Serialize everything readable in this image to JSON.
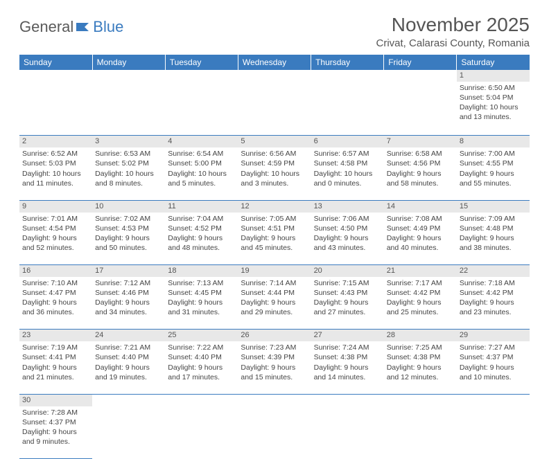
{
  "logo": {
    "part1": "General",
    "part2": "Blue"
  },
  "title": "November 2025",
  "location": "Crivat, Calarasi County, Romania",
  "colors": {
    "header_bg": "#3a7bbf",
    "header_text": "#ffffff",
    "daynum_bg": "#e8e8e8",
    "cell_border": "#3a7bbf",
    "body_text": "#444444",
    "title_text": "#555555"
  },
  "weekdays": [
    "Sunday",
    "Monday",
    "Tuesday",
    "Wednesday",
    "Thursday",
    "Friday",
    "Saturday"
  ],
  "weeks": [
    [
      null,
      null,
      null,
      null,
      null,
      null,
      {
        "n": "1",
        "sr": "6:50 AM",
        "ss": "5:04 PM",
        "dl": "10 hours and 13 minutes."
      }
    ],
    [
      {
        "n": "2",
        "sr": "6:52 AM",
        "ss": "5:03 PM",
        "dl": "10 hours and 11 minutes."
      },
      {
        "n": "3",
        "sr": "6:53 AM",
        "ss": "5:02 PM",
        "dl": "10 hours and 8 minutes."
      },
      {
        "n": "4",
        "sr": "6:54 AM",
        "ss": "5:00 PM",
        "dl": "10 hours and 5 minutes."
      },
      {
        "n": "5",
        "sr": "6:56 AM",
        "ss": "4:59 PM",
        "dl": "10 hours and 3 minutes."
      },
      {
        "n": "6",
        "sr": "6:57 AM",
        "ss": "4:58 PM",
        "dl": "10 hours and 0 minutes."
      },
      {
        "n": "7",
        "sr": "6:58 AM",
        "ss": "4:56 PM",
        "dl": "9 hours and 58 minutes."
      },
      {
        "n": "8",
        "sr": "7:00 AM",
        "ss": "4:55 PM",
        "dl": "9 hours and 55 minutes."
      }
    ],
    [
      {
        "n": "9",
        "sr": "7:01 AM",
        "ss": "4:54 PM",
        "dl": "9 hours and 52 minutes."
      },
      {
        "n": "10",
        "sr": "7:02 AM",
        "ss": "4:53 PM",
        "dl": "9 hours and 50 minutes."
      },
      {
        "n": "11",
        "sr": "7:04 AM",
        "ss": "4:52 PM",
        "dl": "9 hours and 48 minutes."
      },
      {
        "n": "12",
        "sr": "7:05 AM",
        "ss": "4:51 PM",
        "dl": "9 hours and 45 minutes."
      },
      {
        "n": "13",
        "sr": "7:06 AM",
        "ss": "4:50 PM",
        "dl": "9 hours and 43 minutes."
      },
      {
        "n": "14",
        "sr": "7:08 AM",
        "ss": "4:49 PM",
        "dl": "9 hours and 40 minutes."
      },
      {
        "n": "15",
        "sr": "7:09 AM",
        "ss": "4:48 PM",
        "dl": "9 hours and 38 minutes."
      }
    ],
    [
      {
        "n": "16",
        "sr": "7:10 AM",
        "ss": "4:47 PM",
        "dl": "9 hours and 36 minutes."
      },
      {
        "n": "17",
        "sr": "7:12 AM",
        "ss": "4:46 PM",
        "dl": "9 hours and 34 minutes."
      },
      {
        "n": "18",
        "sr": "7:13 AM",
        "ss": "4:45 PM",
        "dl": "9 hours and 31 minutes."
      },
      {
        "n": "19",
        "sr": "7:14 AM",
        "ss": "4:44 PM",
        "dl": "9 hours and 29 minutes."
      },
      {
        "n": "20",
        "sr": "7:15 AM",
        "ss": "4:43 PM",
        "dl": "9 hours and 27 minutes."
      },
      {
        "n": "21",
        "sr": "7:17 AM",
        "ss": "4:42 PM",
        "dl": "9 hours and 25 minutes."
      },
      {
        "n": "22",
        "sr": "7:18 AM",
        "ss": "4:42 PM",
        "dl": "9 hours and 23 minutes."
      }
    ],
    [
      {
        "n": "23",
        "sr": "7:19 AM",
        "ss": "4:41 PM",
        "dl": "9 hours and 21 minutes."
      },
      {
        "n": "24",
        "sr": "7:21 AM",
        "ss": "4:40 PM",
        "dl": "9 hours and 19 minutes."
      },
      {
        "n": "25",
        "sr": "7:22 AM",
        "ss": "4:40 PM",
        "dl": "9 hours and 17 minutes."
      },
      {
        "n": "26",
        "sr": "7:23 AM",
        "ss": "4:39 PM",
        "dl": "9 hours and 15 minutes."
      },
      {
        "n": "27",
        "sr": "7:24 AM",
        "ss": "4:38 PM",
        "dl": "9 hours and 14 minutes."
      },
      {
        "n": "28",
        "sr": "7:25 AM",
        "ss": "4:38 PM",
        "dl": "9 hours and 12 minutes."
      },
      {
        "n": "29",
        "sr": "7:27 AM",
        "ss": "4:37 PM",
        "dl": "9 hours and 10 minutes."
      }
    ],
    [
      {
        "n": "30",
        "sr": "7:28 AM",
        "ss": "4:37 PM",
        "dl": "9 hours and 9 minutes."
      },
      null,
      null,
      null,
      null,
      null,
      null
    ]
  ],
  "labels": {
    "sunrise": "Sunrise:",
    "sunset": "Sunset:",
    "daylight": "Daylight:"
  }
}
